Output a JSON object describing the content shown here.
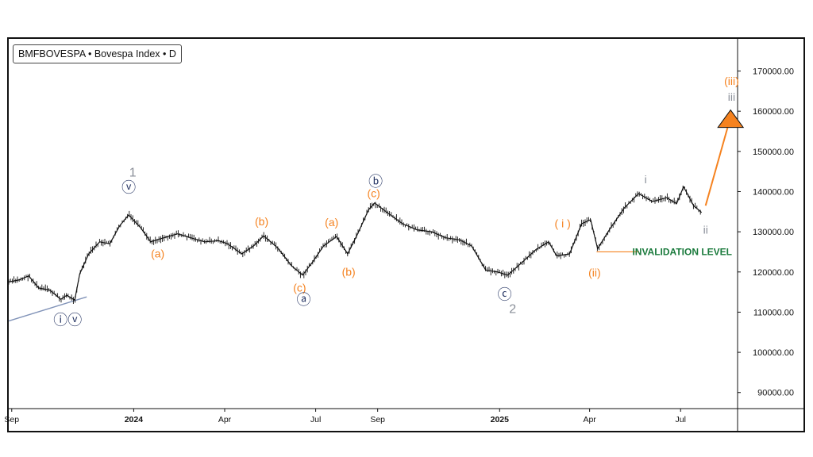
{
  "symbol": "BMFBOVESPA • Bovespa Index • D",
  "colors": {
    "price": "#111111",
    "orange": "#f5821f",
    "navy": "#2b3a67",
    "gray": "#8a8f99",
    "green": "#1a7a3c",
    "trendline": "#8193b8"
  },
  "chart_data": {
    "type": "line",
    "ylim": [
      86000,
      178000
    ],
    "y_ticks": [
      "170000.00",
      "160000.00",
      "150000.00",
      "140000.00",
      "130000.00",
      "120000.00",
      "110000.00",
      "100000.00",
      "90000.00"
    ],
    "y_tick_values": [
      170000,
      160000,
      150000,
      140000,
      130000,
      120000,
      110000,
      100000,
      90000
    ],
    "x_ticks": [
      {
        "label": "Sep",
        "date": "2023-09-01",
        "bold": false
      },
      {
        "label": "2024",
        "date": "2024-01-01",
        "bold": true
      },
      {
        "label": "Apr",
        "date": "2024-04-01",
        "bold": false
      },
      {
        "label": "Jul",
        "date": "2024-07-01",
        "bold": false
      },
      {
        "label": "Sep",
        "date": "2024-09-01",
        "bold": false
      },
      {
        "label": "2025",
        "date": "2025-01-01",
        "bold": true
      },
      {
        "label": "Apr",
        "date": "2025-04-01",
        "bold": false
      },
      {
        "label": "Jul",
        "date": "2025-07-01",
        "bold": false
      }
    ],
    "xlim": [
      "2023-08-29",
      "2025-08-27"
    ],
    "series": [
      {
        "values": [
          [
            "2023-08-29",
            117500
          ],
          [
            "2023-09-08",
            118000
          ],
          [
            "2023-09-18",
            119000
          ],
          [
            "2023-09-28",
            116000
          ],
          [
            "2023-10-09",
            115500
          ],
          [
            "2023-10-20",
            113200
          ],
          [
            "2023-10-26",
            114200
          ],
          [
            "2023-11-03",
            113000
          ],
          [
            "2023-11-08",
            119500
          ],
          [
            "2023-11-17",
            124500
          ],
          [
            "2023-11-28",
            127500
          ],
          [
            "2023-12-08",
            127000
          ],
          [
            "2023-12-18",
            131500
          ],
          [
            "2023-12-27",
            134200
          ],
          [
            "2024-01-08",
            131000
          ],
          [
            "2024-01-18",
            127500
          ],
          [
            "2024-01-31",
            128500
          ],
          [
            "2024-02-14",
            129500
          ],
          [
            "2024-02-27",
            128500
          ],
          [
            "2024-03-12",
            127500
          ],
          [
            "2024-03-26",
            127800
          ],
          [
            "2024-04-04",
            127000
          ],
          [
            "2024-04-18",
            124500
          ],
          [
            "2024-04-30",
            126500
          ],
          [
            "2024-05-10",
            129000
          ],
          [
            "2024-05-24",
            126000
          ],
          [
            "2024-06-07",
            121500
          ],
          [
            "2024-06-18",
            119200
          ],
          [
            "2024-06-28",
            122500
          ],
          [
            "2024-07-09",
            126500
          ],
          [
            "2024-07-22",
            128800
          ],
          [
            "2024-08-02",
            124500
          ],
          [
            "2024-08-12",
            129500
          ],
          [
            "2024-08-23",
            135500
          ],
          [
            "2024-08-29",
            137200
          ],
          [
            "2024-09-12",
            134500
          ],
          [
            "2024-09-26",
            132000
          ],
          [
            "2024-10-10",
            130500
          ],
          [
            "2024-10-25",
            130000
          ],
          [
            "2024-11-08",
            128500
          ],
          [
            "2024-11-22",
            128000
          ],
          [
            "2024-12-04",
            126500
          ],
          [
            "2024-12-18",
            120500
          ],
          [
            "2024-12-30",
            120000
          ],
          [
            "2025-01-09",
            119200
          ],
          [
            "2025-01-24",
            122500
          ],
          [
            "2025-02-06",
            125500
          ],
          [
            "2025-02-19",
            127500
          ],
          [
            "2025-02-27",
            124000
          ],
          [
            "2025-03-12",
            124500
          ],
          [
            "2025-03-24",
            132000
          ],
          [
            "2025-04-02",
            133000
          ],
          [
            "2025-04-09",
            125800
          ],
          [
            "2025-04-22",
            131000
          ],
          [
            "2025-05-06",
            136000
          ],
          [
            "2025-05-20",
            139500
          ],
          [
            "2025-06-03",
            137500
          ],
          [
            "2025-06-17",
            138500
          ],
          [
            "2025-06-27",
            137000
          ],
          [
            "2025-07-04",
            141200
          ],
          [
            "2025-07-14",
            136500
          ],
          [
            "2025-07-22",
            134800
          ]
        ]
      }
    ],
    "wave_labels": [
      {
        "text": "ⓥ",
        "date": "2023-12-27",
        "y": 141000,
        "color": "navy"
      },
      {
        "text": "1",
        "date": "2023-12-31",
        "y": 144800,
        "color": "gray"
      },
      {
        "text": "ⓘⓥ",
        "date": "2023-10-27",
        "y": 108000,
        "color": "navy"
      },
      {
        "text": "(a)",
        "date": "2024-01-25",
        "y": 124500,
        "color": "orange"
      },
      {
        "text": "(b)",
        "date": "2024-05-08",
        "y": 132500,
        "color": "orange"
      },
      {
        "text": "(c)",
        "date": "2024-06-15",
        "y": 116000,
        "color": "orange"
      },
      {
        "text": "ⓐ",
        "date": "2024-06-19",
        "y": 113000,
        "color": "navy"
      },
      {
        "text": "(a)",
        "date": "2024-07-17",
        "y": 132300,
        "color": "orange"
      },
      {
        "text": "(b)",
        "date": "2024-08-03",
        "y": 120000,
        "color": "orange"
      },
      {
        "text": "(c)",
        "date": "2024-08-28",
        "y": 139500,
        "color": "orange"
      },
      {
        "text": "ⓑ",
        "date": "2024-08-30",
        "y": 142500,
        "color": "navy"
      },
      {
        "text": "ⓒ",
        "date": "2025-01-06",
        "y": 114300,
        "color": "navy"
      },
      {
        "text": "2",
        "date": "2025-01-14",
        "y": 110800,
        "color": "gray"
      },
      {
        "text": "( i )",
        "date": "2025-03-05",
        "y": 132000,
        "color": "orange"
      },
      {
        "text": "(ii)",
        "date": "2025-04-06",
        "y": 119800,
        "color": "orange"
      },
      {
        "text": "i",
        "date": "2025-05-27",
        "y": 143000,
        "color": "gray"
      },
      {
        "text": "ii",
        "date": "2025-07-26",
        "y": 130500,
        "color": "gray"
      },
      {
        "text": "(iii)",
        "date": "2025-08-21",
        "y": 167500,
        "color": "orange"
      },
      {
        "text": "iii",
        "date": "2025-08-21",
        "y": 163500,
        "color": "gray"
      }
    ],
    "annotations": {
      "invalidation_text": "INVALIDATION LEVEL",
      "invalidation_level": 125000,
      "invalidation_from": "2025-04-08",
      "invalidation_to": "2025-05-20",
      "trendline": [
        [
          "2023-08-29",
          107800
        ],
        [
          "2023-11-15",
          113800
        ]
      ],
      "projection": {
        "from": [
          "2025-07-26",
          136500
        ],
        "to": [
          "2025-08-18",
          156800
        ],
        "head": [
          "2025-08-20",
          160300
        ]
      }
    },
    "grid": false
  }
}
